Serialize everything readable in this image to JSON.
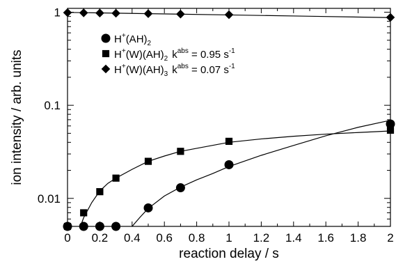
{
  "chart_data": {
    "type": "scatter",
    "xlabel": "reaction delay / s",
    "ylabel": "ion intensity / arb. units",
    "xlim": [
      0,
      2
    ],
    "ylim": [
      0.005,
      1.1
    ],
    "yscale": "log",
    "x_ticks": [
      "0",
      "0.2",
      "0.4",
      "0.6",
      "0.8",
      "1",
      "1.2",
      "1.4",
      "1.6",
      "1.8",
      "2"
    ],
    "y_ticks": [
      "0.01",
      "0.1",
      "1"
    ],
    "grid": false,
    "legend_position": "top-left",
    "series": [
      {
        "name": "H⁺(AH)₂",
        "marker": "circle",
        "x": [
          0,
          0.1,
          0.2,
          0.3,
          0.5,
          0.7,
          1.0,
          2.0
        ],
        "y": [
          0.005,
          0.005,
          0.005,
          0.005,
          0.0079,
          0.013,
          0.023,
          0.063
        ]
      },
      {
        "name": "H⁺(W)(AH)₂",
        "marker": "square",
        "x": [
          0,
          0.1,
          0.2,
          0.3,
          0.5,
          0.7,
          1.0,
          2.0
        ],
        "y": [
          0.005,
          0.007,
          0.0118,
          0.0165,
          0.025,
          0.032,
          0.041,
          0.054
        ]
      },
      {
        "name": "H⁺(W)(AH)₃",
        "marker": "diamond",
        "x": [
          0,
          0.1,
          0.2,
          0.3,
          0.5,
          0.7,
          1.0,
          2.0
        ],
        "y": [
          0.99,
          0.985,
          0.98,
          0.975,
          0.965,
          0.955,
          0.94,
          0.88
        ]
      }
    ],
    "fit_curves": [
      {
        "series": "H⁺(AH)₂",
        "x": [
          0.35,
          0.4,
          0.45,
          0.5,
          0.6,
          0.7,
          0.8,
          0.9,
          1.0,
          1.2,
          1.4,
          1.6,
          1.8,
          2.0
        ],
        "y": [
          0.0042,
          0.005,
          0.0063,
          0.0078,
          0.0106,
          0.0132,
          0.0158,
          0.0185,
          0.022,
          0.029,
          0.037,
          0.047,
          0.058,
          0.069
        ]
      },
      {
        "series": "H⁺(W)(AH)₂",
        "x": [
          0.08,
          0.1,
          0.15,
          0.2,
          0.25,
          0.3,
          0.4,
          0.5,
          0.6,
          0.7,
          0.8,
          1.0,
          1.2,
          1.4,
          1.6,
          1.8,
          2.0
        ],
        "y": [
          0.005,
          0.0062,
          0.009,
          0.012,
          0.0145,
          0.0165,
          0.0205,
          0.025,
          0.0285,
          0.032,
          0.0345,
          0.04,
          0.0435,
          0.0465,
          0.049,
          0.051,
          0.053
        ]
      },
      {
        "series": "H⁺(W)(AH)₃",
        "x": [
          0,
          0.5,
          1.0,
          1.5,
          2.0
        ],
        "y": [
          0.995,
          0.965,
          0.935,
          0.905,
          0.875
        ]
      }
    ],
    "legend": [
      {
        "marker": "circle",
        "main": "H",
        "sup": "+",
        "mid": "(AH)",
        "sub": "2",
        "rate_k": "",
        "rate_sup": "",
        "rate_value": ""
      },
      {
        "marker": "square",
        "main": "H",
        "sup": "+",
        "mid": "(W)(AH)",
        "sub": "2",
        "rate_k": "k",
        "rate_sup": "abs",
        "rate_value": " = 0.95 s",
        "rate_unit_sup": "-1"
      },
      {
        "marker": "diamond",
        "main": "H",
        "sup": "+",
        "mid": "(W)(AH)",
        "sub": "3",
        "rate_k": "k",
        "rate_sup": "abs",
        "rate_value": " = 0.07 s",
        "rate_unit_sup": "-1"
      }
    ]
  }
}
